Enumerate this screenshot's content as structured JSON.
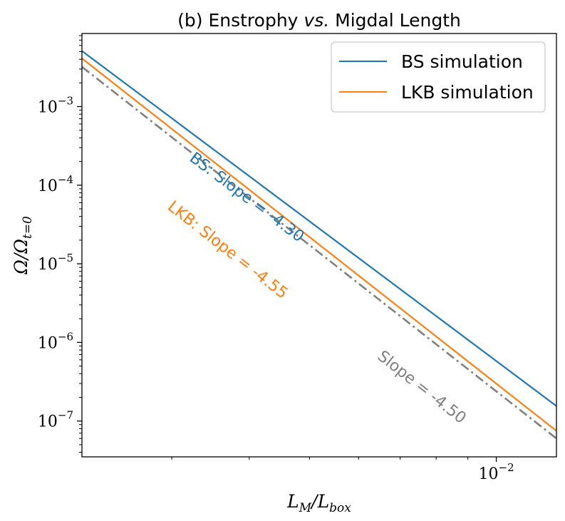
{
  "chart_data": {
    "type": "line",
    "title_prefix": "(b) Enstrophy ",
    "title_italic": "vs.",
    "title_suffix": " Migdal Length",
    "xlabel": "L_M/L_box",
    "ylabel": "Ω/Ω_t=0",
    "xscale": "log",
    "yscale": "log",
    "xlim": [
      0.00215,
      0.0125
    ],
    "ylim": [
      3.5e-08,
      0.0085
    ],
    "x_ticks": [
      {
        "base": "10",
        "exp": "−2",
        "value": 0.01
      }
    ],
    "y_ticks": [
      {
        "base": "10",
        "exp": "−3",
        "value": 0.001
      },
      {
        "base": "10",
        "exp": "−4",
        "value": 0.0001
      },
      {
        "base": "10",
        "exp": "−5",
        "value": 1e-05
      },
      {
        "base": "10",
        "exp": "−6",
        "value": 1e-06
      },
      {
        "base": "10",
        "exp": "−7",
        "value": 1e-07
      }
    ],
    "grid": false,
    "legend_position": "upper-right",
    "series": [
      {
        "name": "BS simulation",
        "color": "#1f77b4",
        "style": "solid",
        "x": [
          0.00215,
          0.0125
        ],
        "y": [
          0.0051,
          1.55e-07
        ]
      },
      {
        "name": "LKB simulation",
        "color": "#ff7f0e",
        "style": "solid",
        "x": [
          0.00215,
          0.0125
        ],
        "y": [
          0.0041,
          7.5e-08
        ]
      },
      {
        "color": "#808080",
        "style": "dashdot",
        "x": [
          0.00215,
          0.0125
        ],
        "y": [
          0.0032,
          6e-08
        ]
      }
    ],
    "annotations": [
      {
        "text": "BS: Slope = -4.30",
        "color": "#1f77b4",
        "x": 0.00392,
        "y": 6.25e-05
      },
      {
        "text": "LKB: Slope = -4.55",
        "color": "#ff7f0e",
        "x": 0.00365,
        "y": 1.34e-05
      },
      {
        "text": "Slope = -4.50",
        "color": "#808080",
        "x": 0.0075,
        "y": 2.4e-07
      }
    ]
  }
}
